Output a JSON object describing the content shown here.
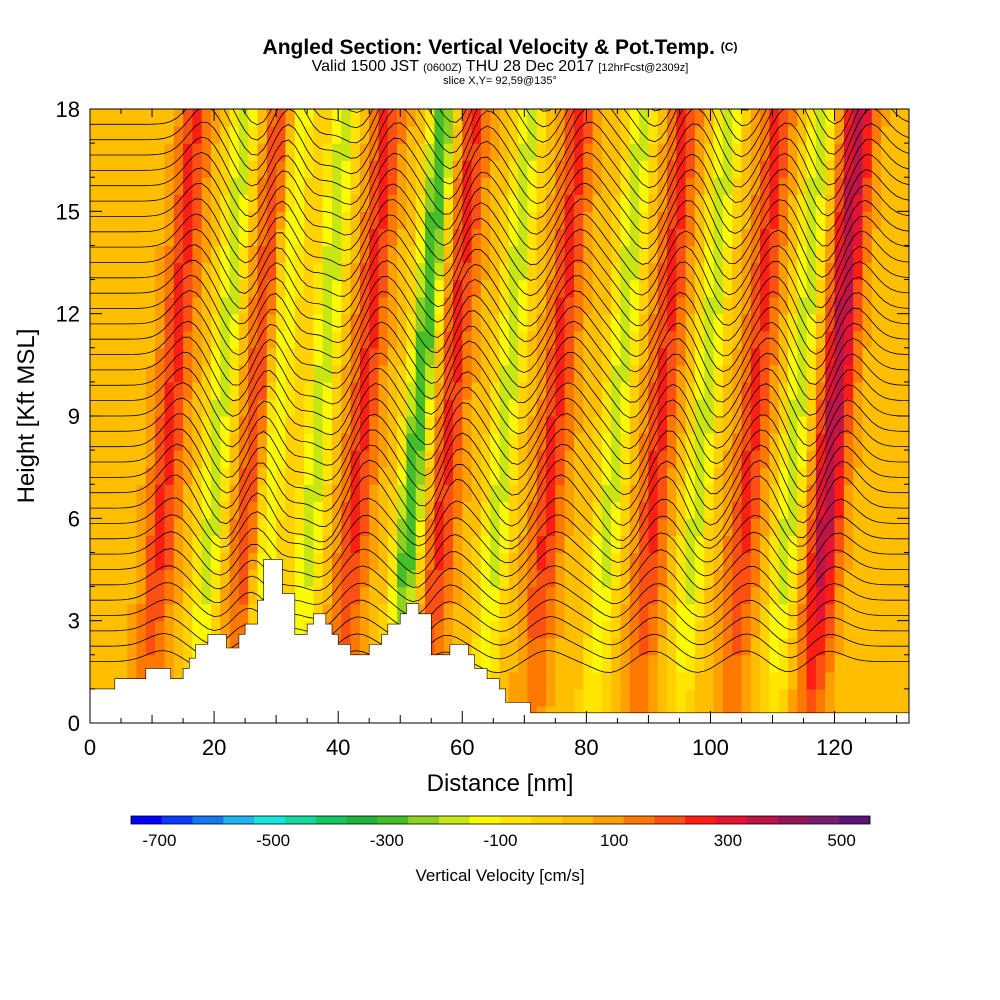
{
  "header": {
    "title": "Angled Section: Vertical Velocity & Pot.Temp.",
    "title_tag": "(C)",
    "subtitle_pre": "Valid 1500 JST",
    "subtitle_zulu": "(0600Z)",
    "subtitle_date": "THU 28 Dec 2017",
    "subtitle_fcst": "[12hrFcst@2309z]",
    "slice": "slice X,Y= 92,59@135°"
  },
  "chart_data": {
    "type": "heatmap",
    "xlabel": "Distance [nm]",
    "ylabel": "Height [Kft MSL]",
    "xlim": [
      0,
      132
    ],
    "ylim": [
      0,
      18
    ],
    "xticks": [
      0,
      20,
      40,
      60,
      80,
      100,
      120
    ],
    "yticks": [
      0,
      3,
      6,
      9,
      12,
      15,
      18
    ],
    "field": "Vertical Velocity",
    "colorbar": {
      "label": "Vertical Velocity [cm/s]",
      "range": [
        -750,
        550
      ],
      "ticks": [
        -700,
        -500,
        -300,
        -100,
        100,
        300,
        500
      ],
      "colors": [
        "#0000ff",
        "#0a3cff",
        "#1478f0",
        "#1eb4f0",
        "#14e6dc",
        "#14dca0",
        "#14c864",
        "#1eb43c",
        "#46be28",
        "#8cd21e",
        "#c8e614",
        "#fafa00",
        "#ffe600",
        "#ffd200",
        "#ffbe00",
        "#ffa000",
        "#ff7800",
        "#ff5014",
        "#ff1e14",
        "#e61432",
        "#be1446",
        "#96145a",
        "#781e6e",
        "#5a1478"
      ]
    },
    "updraft_bands_x_nm": [
      13,
      27,
      44,
      58,
      75,
      92,
      107,
      120
    ],
    "downdraft_bands_x_nm": [
      21,
      30,
      37,
      53,
      67,
      85,
      99,
      114
    ],
    "terrain_kft": [
      [
        0,
        1.0
      ],
      [
        4,
        1.0
      ],
      [
        4,
        1.3
      ],
      [
        9,
        1.3
      ],
      [
        9,
        1.6
      ],
      [
        13,
        1.6
      ],
      [
        13,
        1.3
      ],
      [
        15,
        1.3
      ],
      [
        15,
        1.6
      ],
      [
        16,
        1.6
      ],
      [
        16,
        1.9
      ],
      [
        17,
        1.9
      ],
      [
        17,
        2.3
      ],
      [
        19,
        2.3
      ],
      [
        19,
        2.6
      ],
      [
        22,
        2.6
      ],
      [
        22,
        2.2
      ],
      [
        24,
        2.2
      ],
      [
        24,
        2.6
      ],
      [
        25,
        2.6
      ],
      [
        25,
        2.9
      ],
      [
        27,
        2.9
      ],
      [
        27,
        3.6
      ],
      [
        28,
        3.6
      ],
      [
        28,
        4.8
      ],
      [
        31,
        4.8
      ],
      [
        31,
        3.8
      ],
      [
        33,
        3.8
      ],
      [
        33,
        2.6
      ],
      [
        35,
        2.6
      ],
      [
        35,
        2.9
      ],
      [
        36,
        2.9
      ],
      [
        36,
        3.2
      ],
      [
        38,
        3.2
      ],
      [
        38,
        2.9
      ],
      [
        39,
        2.9
      ],
      [
        39,
        2.6
      ],
      [
        40,
        2.6
      ],
      [
        40,
        2.3
      ],
      [
        42,
        2.3
      ],
      [
        42,
        2.0
      ],
      [
        45,
        2.0
      ],
      [
        45,
        2.3
      ],
      [
        47,
        2.3
      ],
      [
        47,
        2.6
      ],
      [
        48,
        2.6
      ],
      [
        48,
        2.9
      ],
      [
        50,
        2.9
      ],
      [
        50,
        3.2
      ],
      [
        51,
        3.2
      ],
      [
        51,
        3.5
      ],
      [
        53,
        3.5
      ],
      [
        53,
        3.2
      ],
      [
        55,
        3.2
      ],
      [
        55,
        2.0
      ],
      [
        58,
        2.0
      ],
      [
        58,
        2.3
      ],
      [
        61,
        2.3
      ],
      [
        61,
        2.0
      ],
      [
        62,
        2.0
      ],
      [
        62,
        1.6
      ],
      [
        64,
        1.6
      ],
      [
        64,
        1.3
      ],
      [
        66,
        1.3
      ],
      [
        66,
        1.0
      ],
      [
        67,
        1.0
      ],
      [
        67,
        0.6
      ],
      [
        71,
        0.6
      ],
      [
        71,
        0.3
      ],
      [
        132,
        0.3
      ]
    ]
  }
}
